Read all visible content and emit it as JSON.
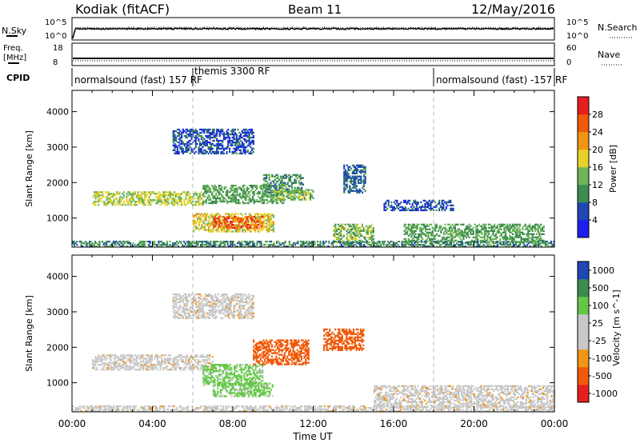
{
  "header": {
    "site": "Kodiak (fitACF)",
    "beam": "Beam 11",
    "date": "12/May/2016"
  },
  "noise_panel": {
    "left_label": "N.Sky",
    "right_label": "N.Search",
    "left_ticks": [
      "10^5",
      "10^0"
    ],
    "right_ticks": [
      "10^5",
      "10^0"
    ]
  },
  "freq_panel": {
    "left_label_line1": "Freq.",
    "left_label_line2": "[MHz]",
    "right_label": "Nave",
    "left_ticks": [
      "18",
      "8"
    ],
    "right_ticks": [
      "60",
      "0"
    ]
  },
  "cpid": {
    "label": "CPID",
    "segments": [
      {
        "start_hour": 0,
        "text": "normalsound (fast)  157  RF",
        "row": "bottom"
      },
      {
        "start_hour": 6,
        "text": "themis  3300  RF",
        "row": "top"
      },
      {
        "start_hour": 18,
        "text": "normalsound (fast)  -157  RF",
        "row": "bottom"
      }
    ]
  },
  "x_axis": {
    "label": "Time UT",
    "ticks": [
      "00:00",
      "04:00",
      "08:00",
      "12:00",
      "16:00",
      "20:00",
      "00:00"
    ],
    "range_hours": [
      0,
      24
    ]
  },
  "colors": {
    "power": [
      "#1e1ef0",
      "#1e46b4",
      "#3c8c50",
      "#6eb45a",
      "#e6d228",
      "#f09614",
      "#f05a0a",
      "#e61e1e"
    ],
    "velocity": [
      "#e61e1e",
      "#f05a0a",
      "#f09614",
      "#c8c8c8",
      "#c8c8c8",
      "#64c846",
      "#3c8c50",
      "#1e46b4"
    ]
  },
  "chart_data": [
    {
      "type": "heatmap",
      "title": "Power",
      "xlabel": "Time UT",
      "ylabel": "Slant Range [km]",
      "xlim": [
        0,
        24
      ],
      "ylim": [
        180,
        4600
      ],
      "yticks": [
        1000,
        2000,
        3000,
        4000
      ],
      "colorbar": {
        "label": "Power [dB]",
        "ticks": [
          "4",
          "8",
          "12",
          "16",
          "20",
          "24",
          "28"
        ],
        "range": [
          0,
          32
        ]
      },
      "echo_regions": [
        {
          "t_start": 1.0,
          "t_end": 6.5,
          "range_lo": 1350,
          "range_hi": 1750,
          "level": 16
        },
        {
          "t_start": 6.5,
          "t_end": 10.5,
          "range_lo": 1400,
          "range_hi": 1900,
          "level": 12
        },
        {
          "t_start": 9.5,
          "t_end": 11.5,
          "range_lo": 1700,
          "range_hi": 2200,
          "level": 10
        },
        {
          "t_start": 10.0,
          "t_end": 12.0,
          "range_lo": 1500,
          "range_hi": 1800,
          "level": 14
        },
        {
          "t_start": 5.0,
          "t_end": 9.0,
          "range_lo": 2800,
          "range_hi": 3500,
          "level": 6
        },
        {
          "t_start": 6.0,
          "t_end": 10.0,
          "range_lo": 600,
          "range_hi": 1100,
          "level": 18
        },
        {
          "t_start": 7.0,
          "t_end": 9.5,
          "range_lo": 700,
          "range_hi": 1050,
          "level": 26
        },
        {
          "t_start": 13.0,
          "t_end": 15.0,
          "range_lo": 300,
          "range_hi": 800,
          "level": 14
        },
        {
          "t_start": 13.5,
          "t_end": 14.6,
          "range_lo": 1700,
          "range_hi": 2500,
          "level": 8
        },
        {
          "t_start": 16.5,
          "t_end": 23.5,
          "range_lo": 300,
          "range_hi": 800,
          "level": 12
        },
        {
          "t_start": 15.5,
          "t_end": 19.0,
          "range_lo": 1200,
          "range_hi": 1500,
          "level": 6
        },
        {
          "t_start": 0.0,
          "t_end": 24.0,
          "range_lo": 180,
          "range_hi": 330,
          "level": 10
        }
      ]
    },
    {
      "type": "heatmap",
      "title": "Velocity",
      "xlabel": "Time UT",
      "ylabel": "Slant Range [km]",
      "xlim": [
        0,
        24
      ],
      "ylim": [
        180,
        4600
      ],
      "yticks": [
        1000,
        2000,
        3000,
        4000
      ],
      "colorbar": {
        "label": "Velocity [m s^-1]",
        "ticks": [
          "-1000",
          "-500",
          "-100",
          "-25",
          "25",
          "100",
          "500",
          "1000"
        ],
        "range": [
          -1200,
          1200
        ]
      },
      "echo_regions": [
        {
          "t_start": 1.0,
          "t_end": 7.0,
          "range_lo": 1350,
          "range_hi": 1800,
          "level": 0
        },
        {
          "t_start": 6.5,
          "t_end": 9.5,
          "range_lo": 900,
          "range_hi": 1500,
          "level": 150
        },
        {
          "t_start": 7.0,
          "t_end": 10.0,
          "range_lo": 600,
          "range_hi": 1000,
          "level": 150
        },
        {
          "t_start": 9.0,
          "t_end": 11.8,
          "range_lo": 1500,
          "range_hi": 2200,
          "level": -300
        },
        {
          "t_start": 12.5,
          "t_end": 14.5,
          "range_lo": 1900,
          "range_hi": 2500,
          "level": -300
        },
        {
          "t_start": 5.0,
          "t_end": 9.0,
          "range_lo": 2800,
          "range_hi": 3500,
          "level": 0
        },
        {
          "t_start": 15.0,
          "t_end": 24.0,
          "range_lo": 300,
          "range_hi": 900,
          "level": 0
        },
        {
          "t_start": 0.0,
          "t_end": 24.0,
          "range_lo": 180,
          "range_hi": 330,
          "level": 0
        }
      ]
    }
  ]
}
